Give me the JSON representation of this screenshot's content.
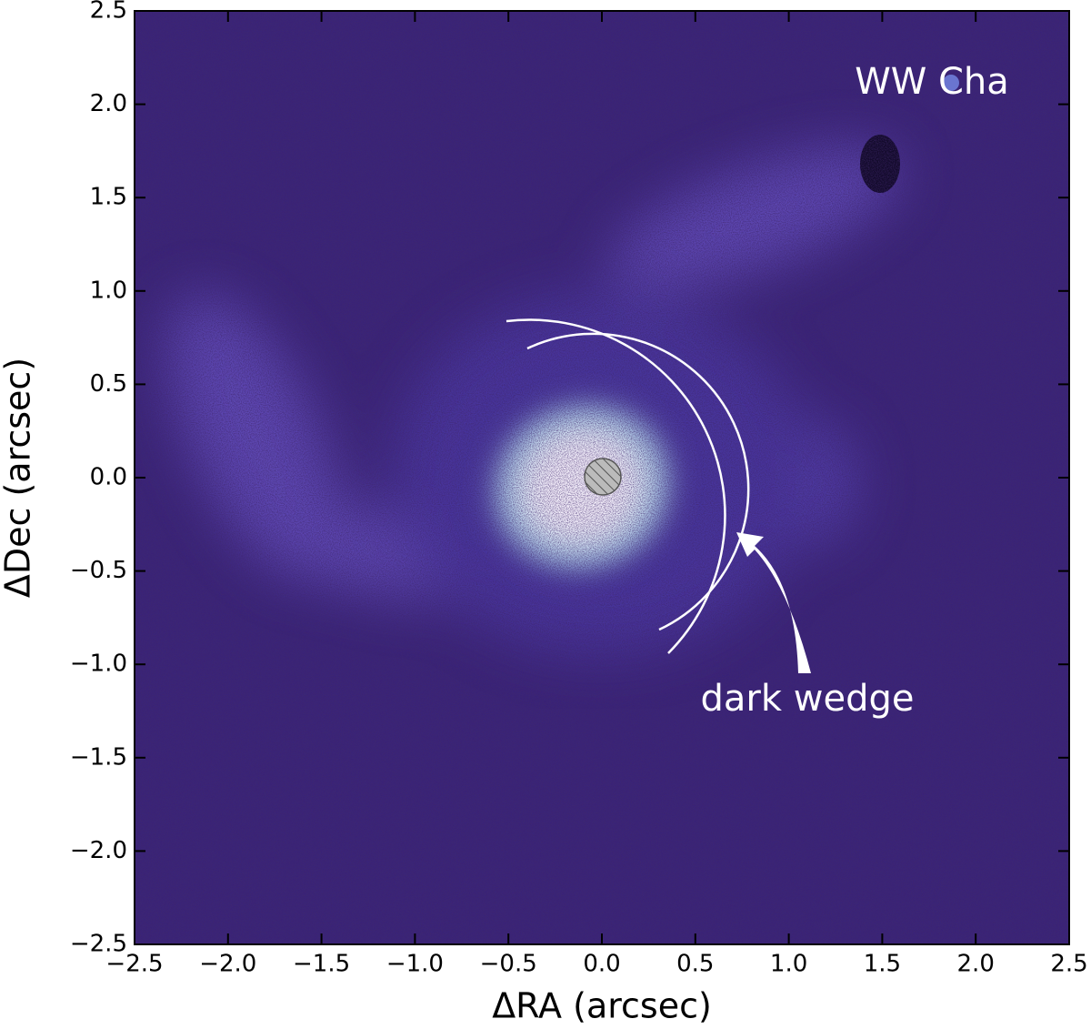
{
  "chart_data": {
    "type": "image",
    "xlabel": "ΔRA (arcsec)",
    "ylabel": "ΔDec (arcsec)",
    "xlim": [
      -2.5,
      2.5
    ],
    "ylim": [
      -2.5,
      2.5
    ],
    "xticks": [
      {
        "value": -2.5,
        "label": "−2.5"
      },
      {
        "value": -2.0,
        "label": "−2.0"
      },
      {
        "value": -1.5,
        "label": "−1.5"
      },
      {
        "value": -1.0,
        "label": "−1.0"
      },
      {
        "value": -0.5,
        "label": "−0.5"
      },
      {
        "value": 0,
        "label": "0.0"
      },
      0.5,
      {
        "value": 1.0,
        "label": "1.0"
      },
      1.5,
      {
        "value": 2.0,
        "label": "2.0"
      },
      2.5
    ],
    "yticks": [
      {
        "value": -2.5,
        "label": "−2.5"
      },
      {
        "value": -2.0,
        "label": "−2.0"
      },
      {
        "value": -1.5,
        "label": "−1.5"
      },
      {
        "value": -1.0,
        "label": "−1.0"
      },
      {
        "value": -0.5,
        "label": "−0.5"
      },
      {
        "value": 0,
        "label": "0.0"
      },
      0.5,
      {
        "value": 1.0,
        "label": "1.0"
      },
      1.5,
      {
        "value": 2.0,
        "label": "2.0"
      },
      2.5
    ],
    "annotations": [
      "WW Cha",
      "dark wedge"
    ]
  }
}
